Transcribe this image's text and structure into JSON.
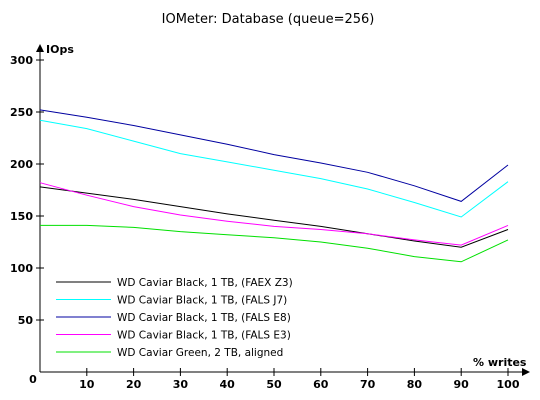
{
  "chart_data": {
    "type": "line",
    "title": "IOMeter: Database (queue=256)",
    "xlabel": "% writes",
    "ylabel": "IOps",
    "xlim": [
      0,
      100
    ],
    "ylim": [
      0,
      300
    ],
    "xticks": [
      0,
      10,
      20,
      30,
      40,
      50,
      60,
      70,
      80,
      90,
      100
    ],
    "yticks": [
      0,
      50,
      100,
      150,
      200,
      250,
      300
    ],
    "grid": false,
    "legend_position": "bottom-left",
    "x": [
      0,
      10,
      20,
      30,
      40,
      50,
      60,
      70,
      80,
      90,
      100
    ],
    "series": [
      {
        "name": "WD Caviar Black, 1 TB, (FAEX Z3)",
        "color": "#000000",
        "values": [
          178,
          172,
          166,
          159,
          152,
          146,
          140,
          133,
          126,
          120,
          137
        ]
      },
      {
        "name": "WD Caviar Black, 1 TB, (FALS J7)",
        "color": "#00ffff",
        "values": [
          242,
          234,
          222,
          210,
          202,
          194,
          186,
          176,
          163,
          149,
          183
        ]
      },
      {
        "name": "WD Caviar Black, 1 TB, (FALS E8)",
        "color": "#0000a0",
        "values": [
          252,
          245,
          237,
          228,
          219,
          209,
          201,
          192,
          179,
          164,
          199
        ]
      },
      {
        "name": "WD Caviar Black, 1 TB, (FALS E3)",
        "color": "#ff00ff",
        "values": [
          182,
          170,
          159,
          151,
          145,
          140,
          137,
          133,
          127,
          122,
          141
        ]
      },
      {
        "name": "WD Caviar Green, 2 TB, aligned",
        "color": "#00e000",
        "values": [
          141,
          141,
          139,
          135,
          132,
          129,
          125,
          119,
          111,
          106,
          127
        ]
      }
    ]
  }
}
